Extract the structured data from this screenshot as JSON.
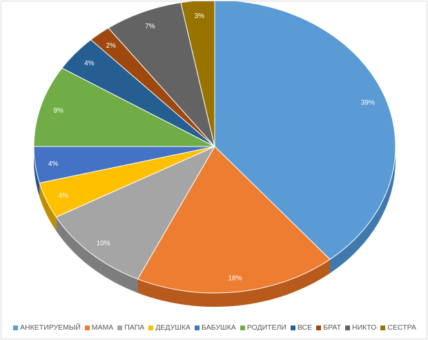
{
  "chart_data": {
    "type": "pie",
    "style": "3d",
    "legend_position": "bottom",
    "data_labels": "percent",
    "slices": [
      {
        "label": "АНКЕТИРУЕМЫЙ",
        "value": 39,
        "display": "39%",
        "color": "#5b9bd5",
        "side": "#3f79ad"
      },
      {
        "label": "МАМА",
        "value": 18,
        "display": "18%",
        "color": "#ed7d31",
        "side": "#b85a1c"
      },
      {
        "label": "ПАПА",
        "value": 10,
        "display": "10%",
        "color": "#a5a5a5",
        "side": "#7d7d7d"
      },
      {
        "label": "ДЕДУШКА",
        "value": 4,
        "display": "4%",
        "color": "#ffc000",
        "side": "#c08f00"
      },
      {
        "label": "БАБУШКА",
        "value": 4,
        "display": "4%",
        "color": "#4472c4",
        "side": "#2c518f"
      },
      {
        "label": "РОДИТЕЛИ",
        "value": 9,
        "display": "9%",
        "color": "#70ad47",
        "side": "#4f7f30"
      },
      {
        "label": "ВСЕ",
        "value": 4,
        "display": "4%",
        "color": "#255e91",
        "side": "#184268"
      },
      {
        "label": "БРАТ",
        "value": 2,
        "display": "2%",
        "color": "#9e480e",
        "side": "#6f3108"
      },
      {
        "label": "НИКТО",
        "value": 7,
        "display": "7%",
        "color": "#636363",
        "side": "#454545"
      },
      {
        "label": "СЕСТРА",
        "value": 3,
        "display": "3%",
        "color": "#997300",
        "side": "#6b5000"
      }
    ]
  }
}
